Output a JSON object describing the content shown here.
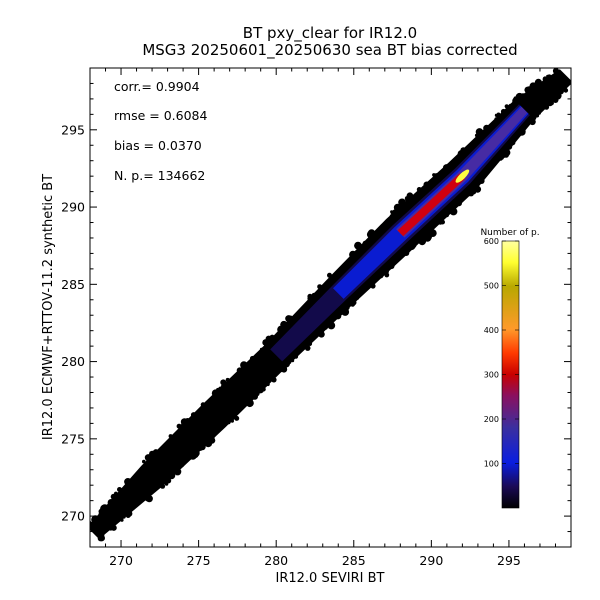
{
  "chart_data": {
    "type": "heatmap",
    "title": "BT pxy_clear for IR12.0",
    "subtitle": "MSG3 20250601_20250630 sea BT bias corrected",
    "xlabel": "IR12.0 SEVIRI BT",
    "ylabel": "IR12.0 ECMWF+RTTOV-11.2 synthetic BT",
    "xlim": [
      268,
      299
    ],
    "ylim": [
      268,
      299
    ],
    "xticks": [
      270,
      275,
      280,
      285,
      290,
      295
    ],
    "yticks": [
      270,
      275,
      280,
      285,
      290,
      295
    ],
    "stats": [
      {
        "label": "corr.=",
        "value": "0.9904"
      },
      {
        "label": "rmse =",
        "value": "0.6084"
      },
      {
        "label": "bias =",
        "value": "0.0370"
      },
      {
        "label": "N. p.=",
        "value": "134662"
      }
    ],
    "density_ridge": [
      {
        "x": 268.2,
        "y": 268.9,
        "halfwidth": 0.55
      },
      {
        "x": 272,
        "y": 272.6,
        "halfwidth": 0.95
      },
      {
        "x": 276,
        "y": 276.5,
        "halfwidth": 1.05
      },
      {
        "x": 280,
        "y": 280.4,
        "halfwidth": 1.0
      },
      {
        "x": 284,
        "y": 284.4,
        "halfwidth": 1.15
      },
      {
        "x": 288,
        "y": 288.3,
        "halfwidth": 1.3
      },
      {
        "x": 292,
        "y": 292.0,
        "halfwidth": 1.25
      },
      {
        "x": 296,
        "y": 296.3,
        "halfwidth": 0.9
      },
      {
        "x": 298.7,
        "y": 298.5,
        "halfwidth": 0.6
      }
    ],
    "density_peak": {
      "x": 292,
      "y": 292,
      "count": 600
    },
    "colorbar": {
      "title": "Number of p.",
      "min": 0,
      "max": 600,
      "ticks": [
        100,
        200,
        300,
        400,
        500,
        600
      ],
      "colors": [
        "#000000",
        "#1a0a55",
        "#0a1ee0",
        "#3a2fa0",
        "#8a1060",
        "#c80000",
        "#ff3a00",
        "#ff9a2a",
        "#b8a800",
        "#ffff30",
        "#ffffa0"
      ]
    }
  }
}
